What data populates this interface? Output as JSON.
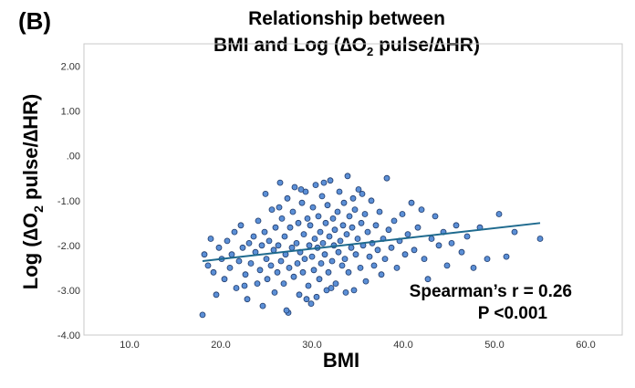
{
  "panel_label": "(B)",
  "chart_data": {
    "type": "scatter",
    "title_line1": "Relationship between",
    "title_line2_prefix": "BMI and Log (∆O",
    "title_line2_sub": "2",
    "title_line2_suffix": " pulse/∆HR)",
    "xlabel": "BMI",
    "ylabel_prefix": "Log (∆O",
    "ylabel_sub": "2",
    "ylabel_suffix": " pulse/∆HR)",
    "xlim": [
      5,
      64
    ],
    "ylim": [
      -4,
      2.5
    ],
    "x_ticks": [
      "10.0",
      "20.0",
      "30.0",
      "40.0",
      "50.0",
      "60.0"
    ],
    "x_tick_values": [
      10,
      20,
      30,
      40,
      50,
      60
    ],
    "y_ticks": [
      "2.00",
      "1.00",
      ".00",
      "-1.00",
      "-2.00",
      "-3.00",
      "-4.00"
    ],
    "y_tick_values": [
      2,
      1,
      0,
      -1,
      -2,
      -3,
      -4
    ],
    "annotations": [
      "Spearman’s r = 0.26",
      "P <0.001"
    ],
    "trendline": {
      "x": [
        18,
        55
      ],
      "y": [
        -2.35,
        -1.5
      ]
    },
    "point_color": "#5b8fd6",
    "point_edge": "#1f3a6a",
    "line_color": "#1e6a8e",
    "points": [
      [
        18.0,
        -3.55
      ],
      [
        18.2,
        -2.2
      ],
      [
        18.6,
        -2.45
      ],
      [
        18.9,
        -1.85
      ],
      [
        19.2,
        -2.6
      ],
      [
        19.5,
        -3.1
      ],
      [
        19.8,
        -2.05
      ],
      [
        20.1,
        -2.3
      ],
      [
        20.4,
        -2.75
      ],
      [
        20.7,
        -1.9
      ],
      [
        21.0,
        -2.5
      ],
      [
        21.2,
        -2.2
      ],
      [
        21.5,
        -1.7
      ],
      [
        21.7,
        -2.95
      ],
      [
        22.0,
        -2.35
      ],
      [
        22.2,
        -1.55
      ],
      [
        22.4,
        -2.05
      ],
      [
        22.7,
        -2.65
      ],
      [
        22.9,
        -3.2
      ],
      [
        23.1,
        -1.95
      ],
      [
        23.3,
        -2.4
      ],
      [
        23.6,
        -1.8
      ],
      [
        23.8,
        -2.15
      ],
      [
        24.0,
        -2.85
      ],
      [
        24.1,
        -1.45
      ],
      [
        24.3,
        -2.55
      ],
      [
        24.5,
        -2.0
      ],
      [
        24.6,
        -3.35
      ],
      [
        24.8,
        -1.7
      ],
      [
        25.0,
        -2.3
      ],
      [
        25.1,
        -2.75
      ],
      [
        25.3,
        -1.9
      ],
      [
        25.5,
        -2.45
      ],
      [
        25.6,
        -1.2
      ],
      [
        25.8,
        -2.1
      ],
      [
        25.9,
        -3.05
      ],
      [
        26.0,
        -1.6
      ],
      [
        26.2,
        -2.6
      ],
      [
        26.3,
        -2.0
      ],
      [
        26.5,
        -0.6
      ],
      [
        26.6,
        -2.35
      ],
      [
        26.7,
        -1.4
      ],
      [
        26.9,
        -2.85
      ],
      [
        27.0,
        -1.8
      ],
      [
        27.1,
        -2.2
      ],
      [
        27.3,
        -0.95
      ],
      [
        27.4,
        -3.5
      ],
      [
        27.5,
        -2.5
      ],
      [
        27.6,
        -1.6
      ],
      [
        27.8,
        -2.05
      ],
      [
        27.9,
        -1.25
      ],
      [
        28.0,
        -2.7
      ],
      [
        28.1,
        -0.7
      ],
      [
        28.3,
        -1.95
      ],
      [
        28.4,
        -2.4
      ],
      [
        28.5,
        -1.5
      ],
      [
        28.6,
        -3.1
      ],
      [
        28.7,
        -2.15
      ],
      [
        28.9,
        -1.05
      ],
      [
        29.0,
        -2.6
      ],
      [
        29.1,
        -1.75
      ],
      [
        29.2,
        -2.3
      ],
      [
        29.3,
        -0.8
      ],
      [
        29.5,
        -1.4
      ],
      [
        29.6,
        -2.9
      ],
      [
        29.7,
        -2.0
      ],
      [
        29.8,
        -1.55
      ],
      [
        29.9,
        -3.3
      ],
      [
        30.0,
        -2.25
      ],
      [
        30.1,
        -1.15
      ],
      [
        30.2,
        -2.55
      ],
      [
        30.3,
        -1.85
      ],
      [
        30.4,
        -0.65
      ],
      [
        30.6,
        -2.05
      ],
      [
        30.7,
        -1.35
      ],
      [
        30.8,
        -2.75
      ],
      [
        30.9,
        -1.7
      ],
      [
        31.0,
        -2.4
      ],
      [
        31.1,
        -0.9
      ],
      [
        31.2,
        -1.95
      ],
      [
        31.4,
        -2.2
      ],
      [
        31.5,
        -1.5
      ],
      [
        31.6,
        -3.0
      ],
      [
        31.7,
        -1.1
      ],
      [
        31.8,
        -2.6
      ],
      [
        31.9,
        -1.8
      ],
      [
        32.0,
        -0.55
      ],
      [
        32.2,
        -2.35
      ],
      [
        32.3,
        -1.4
      ],
      [
        32.4,
        -2.0
      ],
      [
        32.5,
        -1.65
      ],
      [
        32.6,
        -2.85
      ],
      [
        32.8,
        -1.25
      ],
      [
        32.9,
        -2.15
      ],
      [
        33.0,
        -0.8
      ],
      [
        33.1,
        -1.9
      ],
      [
        33.3,
        -2.45
      ],
      [
        33.4,
        -1.55
      ],
      [
        33.5,
        -1.05
      ],
      [
        33.6,
        -2.3
      ],
      [
        33.8,
        -1.75
      ],
      [
        33.9,
        -0.45
      ],
      [
        34.0,
        -2.6
      ],
      [
        34.1,
        -1.35
      ],
      [
        34.3,
        -2.05
      ],
      [
        34.4,
        -1.6
      ],
      [
        34.6,
        -3.0
      ],
      [
        34.7,
        -1.2
      ],
      [
        34.8,
        -2.2
      ],
      [
        35.0,
        -1.85
      ],
      [
        35.1,
        -0.75
      ],
      [
        35.3,
        -2.5
      ],
      [
        35.4,
        -1.5
      ],
      [
        35.6,
        -2.0
      ],
      [
        35.8,
        -1.3
      ],
      [
        35.9,
        -2.8
      ],
      [
        36.1,
        -1.7
      ],
      [
        36.3,
        -2.25
      ],
      [
        36.5,
        -1.0
      ],
      [
        36.6,
        -1.95
      ],
      [
        36.8,
        -2.45
      ],
      [
        37.0,
        -1.55
      ],
      [
        37.2,
        -2.1
      ],
      [
        37.4,
        -1.25
      ],
      [
        37.6,
        -2.65
      ],
      [
        37.8,
        -1.85
      ],
      [
        38.0,
        -2.3
      ],
      [
        38.2,
        -0.5
      ],
      [
        38.4,
        -1.65
      ],
      [
        38.7,
        -2.05
      ],
      [
        39.0,
        -1.45
      ],
      [
        39.3,
        -2.5
      ],
      [
        39.6,
        -1.9
      ],
      [
        39.9,
        -1.3
      ],
      [
        40.2,
        -2.2
      ],
      [
        40.5,
        -1.75
      ],
      [
        40.9,
        -1.05
      ],
      [
        41.2,
        -2.1
      ],
      [
        41.6,
        -1.6
      ],
      [
        42.0,
        -1.2
      ],
      [
        42.3,
        -2.3
      ],
      [
        42.7,
        -2.75
      ],
      [
        43.1,
        -1.85
      ],
      [
        43.5,
        -1.35
      ],
      [
        43.9,
        -2.0
      ],
      [
        44.4,
        -1.7
      ],
      [
        44.8,
        -2.45
      ],
      [
        45.3,
        -1.95
      ],
      [
        45.8,
        -1.55
      ],
      [
        46.4,
        -2.15
      ],
      [
        47.0,
        -1.8
      ],
      [
        47.7,
        -2.5
      ],
      [
        48.4,
        -1.6
      ],
      [
        49.2,
        -2.3
      ],
      [
        50.5,
        -1.3
      ],
      [
        51.3,
        -2.25
      ],
      [
        52.2,
        -1.7
      ],
      [
        55.0,
        -1.85
      ],
      [
        24.9,
        -0.85
      ],
      [
        27.2,
        -3.45
      ],
      [
        29.4,
        -3.2
      ],
      [
        31.3,
        -0.6
      ],
      [
        33.7,
        -3.05
      ],
      [
        35.5,
        -0.85
      ],
      [
        22.6,
        -2.9
      ],
      [
        26.4,
        -1.15
      ],
      [
        28.8,
        -0.75
      ],
      [
        30.5,
        -3.15
      ],
      [
        32.1,
        -2.95
      ],
      [
        34.5,
        -0.95
      ]
    ]
  }
}
